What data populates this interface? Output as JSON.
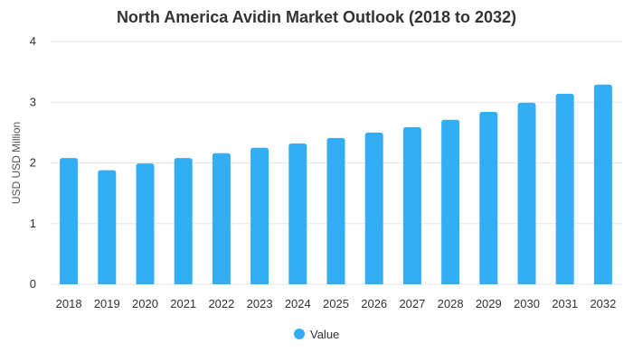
{
  "chart_data": {
    "type": "bar",
    "title": "North America Avidin Market Outlook (2018 to 2032)",
    "xlabel": "",
    "ylabel": "USD USD Million",
    "categories": [
      "2018",
      "2019",
      "2020",
      "2021",
      "2022",
      "2023",
      "2024",
      "2025",
      "2026",
      "2027",
      "2028",
      "2029",
      "2030",
      "2031",
      "2032"
    ],
    "series": [
      {
        "name": "Value",
        "values": [
          2.08,
          1.88,
          1.99,
          2.08,
          2.16,
          2.25,
          2.32,
          2.41,
          2.5,
          2.59,
          2.71,
          2.84,
          2.99,
          3.14,
          3.29
        ],
        "color": "#33aef5"
      }
    ],
    "ylim": [
      0,
      4
    ],
    "yticks": [
      "0",
      "1",
      "2",
      "3",
      "4"
    ],
    "grid": true,
    "legend": "bottom-center"
  }
}
